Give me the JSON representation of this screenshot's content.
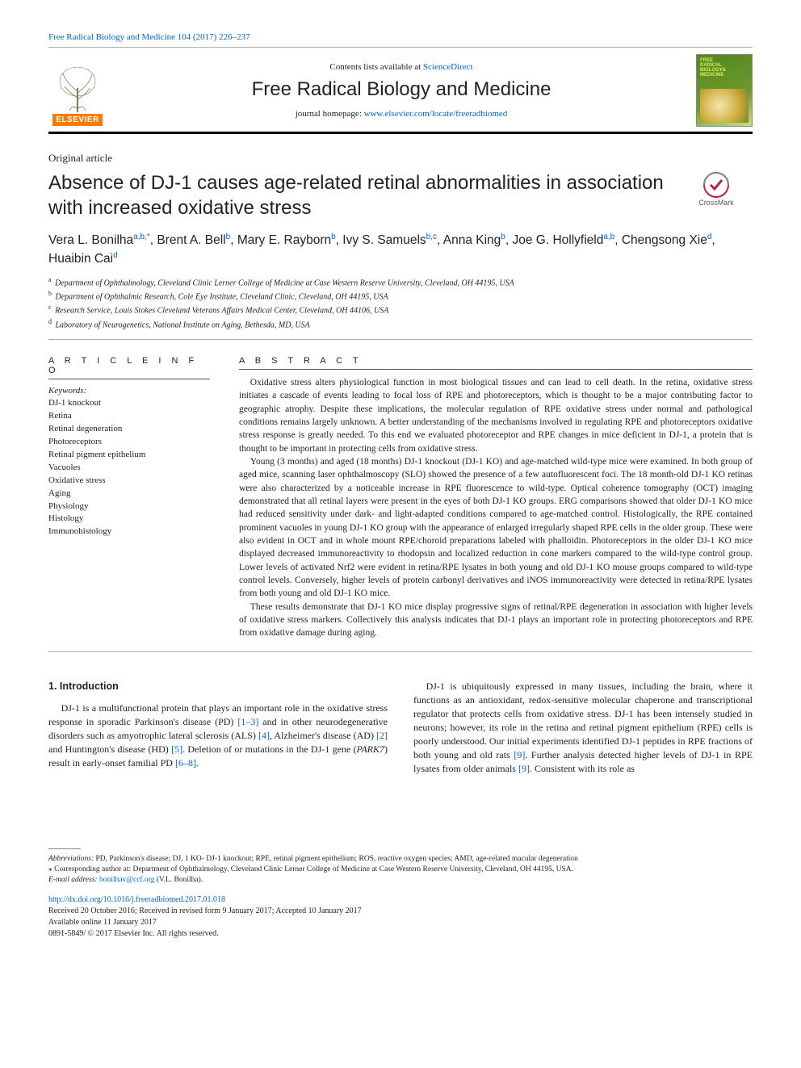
{
  "top_link": {
    "citation": "Free Radical Biology and Medicine 104 (2017) 226–237"
  },
  "header": {
    "contents_prefix": "Contents lists available at ",
    "contents_link": "ScienceDirect",
    "journal_name": "Free Radical Biology and Medicine",
    "homepage_prefix": "journal homepage: ",
    "homepage_url": "www.elsevier.com/locate/freeradbiomed",
    "cover_line1": "FREE",
    "cover_line2": "RADICAL",
    "cover_line3": "BIOLOGY&",
    "cover_line4": "MEDICINE",
    "elsevier_label": "ELSEVIER"
  },
  "article": {
    "type": "Original article",
    "title": "Absence of DJ-1 causes age-related retinal abnormalities in association with increased oxidative stress",
    "crossmark": "CrossMark"
  },
  "authors_html": "Vera L. Bonilha<sup>a,b,*</sup>, Brent A. Bell<sup>b</sup>, Mary E. Rayborn<sup>b</sup>, Ivy S. Samuels<sup>b,c</sup>, Anna King<sup>b</sup>, Joe G. Hollyfield<sup>a,b</sup>, Chengsong Xie<sup>d</sup>, Huaibin Cai<sup>d</sup>",
  "affiliations": [
    {
      "sup": "a",
      "text": "Department of Ophthalmology, Cleveland Clinic Lerner College of Medicine at Case Western Reserve University, Cleveland, OH 44195, USA"
    },
    {
      "sup": "b",
      "text": "Department of Ophthalmic Research, Cole Eye Institute, Cleveland Clinic, Cleveland, OH 44195, USA"
    },
    {
      "sup": "c",
      "text": "Research Service, Louis Stokes Cleveland Veterans Affairs Medical Center, Cleveland, OH 44106, USA"
    },
    {
      "sup": "d",
      "text": "Laboratory of Neurogenetics, National Institute on Aging, Bethesda, MD, USA"
    }
  ],
  "info": {
    "heading": "A R T I C L E  I N F O",
    "kw_label": "Keywords:",
    "keywords": [
      "DJ-1 knockout",
      "Retina",
      "Retinal degeneration",
      "Photoreceptors",
      "Retinal pigment epithelium",
      "Vacuoles",
      "Oxidative stress",
      "Aging",
      "Physiology",
      "Histology",
      "Immunohistology"
    ]
  },
  "abstract": {
    "heading": "A B S T R A C T",
    "paragraphs": [
      "Oxidative stress alters physiological function in most biological tissues and can lead to cell death. In the retina, oxidative stress initiates a cascade of events leading to focal loss of RPE and photoreceptors, which is thought to be a major contributing factor to geographic atrophy. Despite these implications, the molecular regulation of RPE oxidative stress under normal and pathological conditions remains largely unknown. A better understanding of the mechanisms involved in regulating RPE and photoreceptors oxidative stress response is greatly needed. To this end we evaluated photoreceptor and RPE changes in mice deficient in DJ-1, a protein that is thought to be important in protecting cells from oxidative stress.",
      "Young (3 months) and aged (18 months) DJ-1 knockout (DJ-1 KO) and age-matched wild-type mice were examined. In both group of aged mice, scanning laser ophthalmoscopy (SLO) showed the presence of a few autofluorescent foci. The 18 month-old DJ-1 KO retinas were also characterized by a noticeable increase in RPE fluorescence to wild-type. Optical coherence tomography (OCT) imaging demonstrated that all retinal layers were present in the eyes of both DJ-1 KO groups. ERG comparisons showed that older DJ-1 KO mice had reduced sensitivity under dark- and light-adapted conditions compared to age-matched control. Histologically, the RPE contained prominent vacuoles in young DJ-1 KO group with the appearance of enlarged irregularly shaped RPE cells in the older group. These were also evident in OCT and in whole mount RPE/choroid preparations labeled with phalloidin. Photoreceptors in the older DJ-1 KO mice displayed decreased immunoreactivity to rhodopsin and localized reduction in cone markers compared to the wild-type control group. Lower levels of activated Nrf2 were evident in retina/RPE lysates in both young and old DJ-1 KO mouse groups compared to wild-type control levels. Conversely, higher levels of protein carbonyl derivatives and iNOS immunoreactivity were detected in retina/RPE lysates from both young and old DJ-1 KO mice.",
      "These results demonstrate that DJ-1 KO mice display progressive signs of retinal/RPE degeneration in association with higher levels of oxidative stress markers. Collectively this analysis indicates that DJ-1 plays an important role in protecting photoreceptors and RPE from oxidative damage during aging."
    ]
  },
  "body": {
    "section_title": "1. Introduction",
    "col1_p1_a": "DJ-1 is a multifunctional protein that plays an important role in the oxidative stress response in sporadic Parkinson's disease (PD) ",
    "col1_ref1": "[1–3]",
    "col1_p1_b": " and in other neurodegenerative disorders such as amyotrophic lateral sclerosis (ALS) ",
    "col1_ref2": "[4]",
    "col1_p1_c": ", Alzheimer's disease (AD) ",
    "col1_ref3": "[2]",
    "col1_p1_d": " and Huntington's disease (HD) ",
    "col1_ref4": "[5]",
    "col1_p1_e": ". Deletion of or mutations in the DJ-1 gene (",
    "col1_gene": "PARK7",
    "col1_p1_f": ") result in early-onset familial PD ",
    "col1_ref5": "[6–8]",
    "col1_p1_g": ".",
    "col2_p1_a": "DJ-1 is ubiquitously expressed in many tissues, including the brain, where it functions as an antioxidant, redox-sensitive molecular chaperone and transcriptional regulator that protects cells from oxidative stress. DJ-1 has been intensely studied in neurons; however, its role in the retina and retinal pigment epithelium (RPE) cells is poorly understood. Our initial experiments identified DJ-1 peptides in RPE fractions of both young and old rats ",
    "col2_ref1": "[9]",
    "col2_p1_b": ". Further analysis detected higher levels of DJ-1 in RPE lysates from older animals ",
    "col2_ref2": "[9]",
    "col2_p1_c": ". Consistent with its role as"
  },
  "footnotes": {
    "abbrev_label": "Abbreviations:",
    "abbrev_text": " PD, Parkinson's disease; DJ, 1 KO- DJ-1 knockout; RPE, retinal pigment epithelium; ROS, reactive oxygen species; AMD, age-related macular degeneration",
    "corr_label": "⁎ Corresponding author at: Department of Ophthalmology, Cleveland Clinic Lerner College of Medicine at Case Western Reserve University, Cleveland, OH 44195, USA.",
    "email_label": "E-mail address: ",
    "email": "bonilhav@ccf.org",
    "email_who": " (V.L. Bonilha)."
  },
  "doi": {
    "link": "http://dx.doi.org/10.1016/j.freeradbiomed.2017.01.018",
    "received": "Received 20 October 2016; Received in revised form 9 January 2017; Accepted 10 January 2017",
    "online": "Available online 11 January 2017",
    "copyright": "0891-5849/ © 2017 Elsevier Inc. All rights reserved."
  }
}
